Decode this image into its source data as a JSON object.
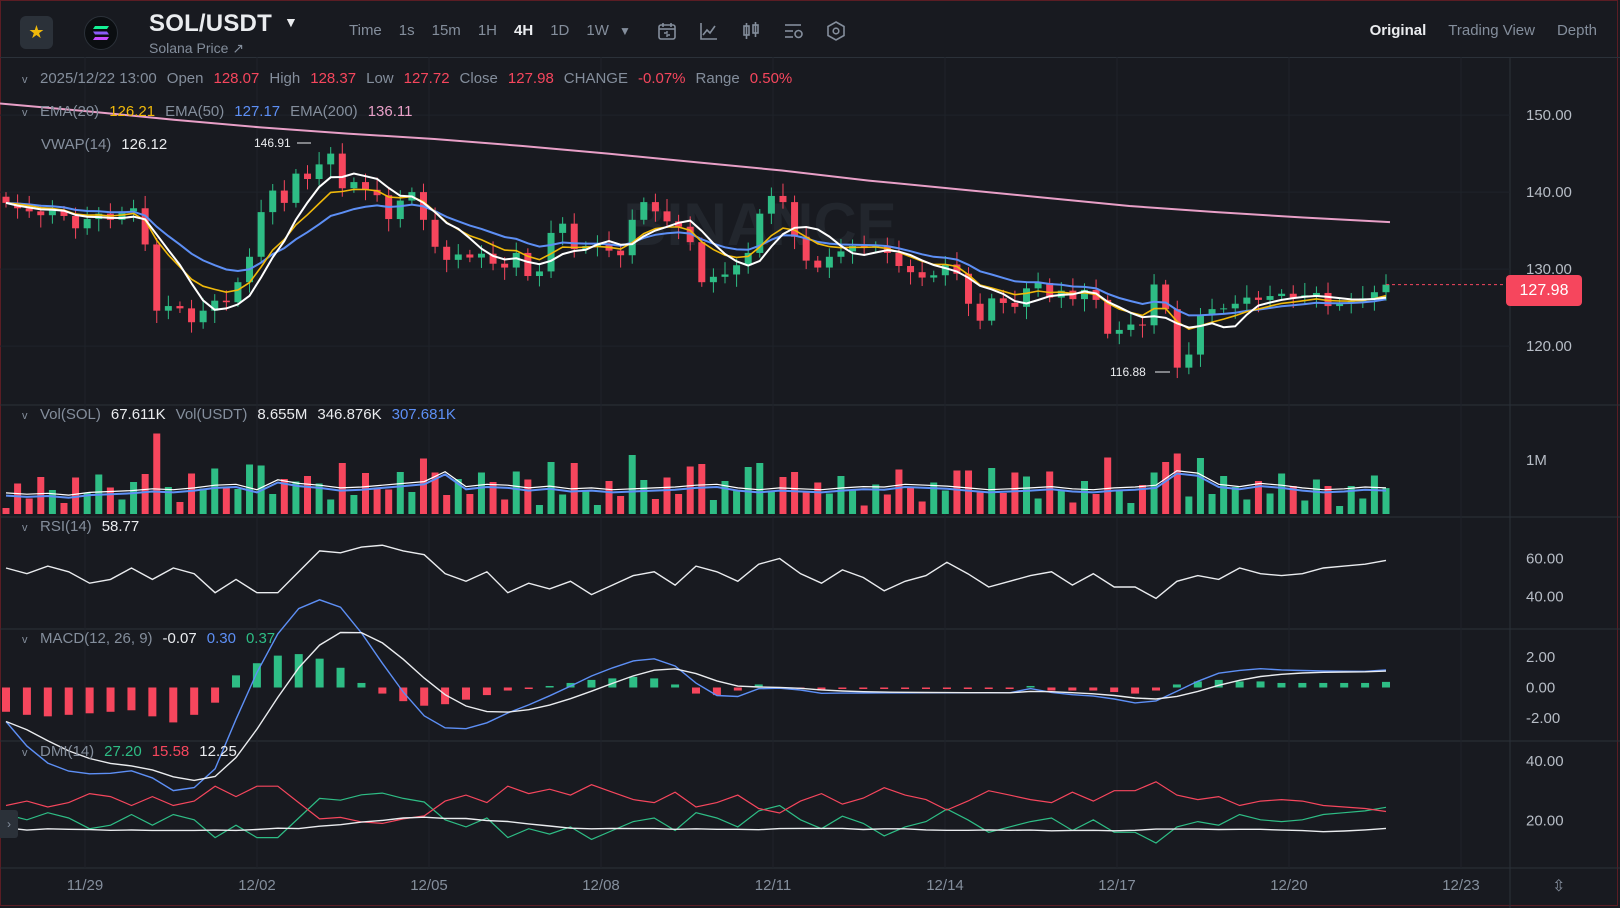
{
  "header": {
    "pair": "SOL/USDT",
    "subtitle": "Solana Price ↗",
    "intervals": [
      "Time",
      "1s",
      "15m",
      "1H",
      "4H",
      "1D",
      "1W"
    ],
    "active_interval": "4H",
    "views": [
      "Original",
      "Trading View",
      "Depth"
    ],
    "active_view": "Original"
  },
  "ohlc": {
    "datetime": "2025/12/22 13:00",
    "open_label": "Open",
    "open": "128.07",
    "high_label": "High",
    "high": "128.37",
    "low_label": "Low",
    "low": "127.72",
    "close_label": "Close",
    "close": "127.98",
    "change_label": "CHANGE",
    "change": "-0.07%",
    "range_label": "Range",
    "range": "0.50%"
  },
  "ema": {
    "ema20_label": "EMA(20)",
    "ema20": "126.21",
    "ema50_label": "EMA(50)",
    "ema50": "127.17",
    "ema200_label": "EMA(200)",
    "ema200": "136.11"
  },
  "vwap": {
    "label": "VWAP(14)",
    "value": "126.12"
  },
  "volume": {
    "label1": "Vol(SOL)",
    "value1": "67.611K",
    "label2": "Vol(USDT)",
    "value2": "8.655M",
    "value3": "346.876K",
    "value4": "307.681K"
  },
  "rsi": {
    "label": "RSI(14)",
    "value": "58.77"
  },
  "macd": {
    "label": "MACD(12, 26, 9)",
    "value1": "-0.07",
    "value2": "0.30",
    "value3": "0.37"
  },
  "dmi": {
    "label": "DMI(14)",
    "value1": "27.20",
    "value2": "15.58",
    "value3": "12.25"
  },
  "last_price": "127.98",
  "annotations": {
    "high_marker": "146.91",
    "low_marker": "116.88"
  },
  "colors": {
    "up": "#2EBD85",
    "down": "#F6465D",
    "ema20": "#F0B90B",
    "ema50": "#5D8FF5",
    "ema200": "#E9A0C8",
    "vwap": "#FFFFFF",
    "accent": "#F0B90B"
  },
  "icons": [
    "star-icon",
    "solana-logo",
    "chevron-down-icon",
    "calendar-icon",
    "line-chart-icon",
    "candle-settings-icon",
    "indicator-settings-icon",
    "hexagon-settings-icon",
    "expand-icon"
  ],
  "chart_data": {
    "type": "candlestick",
    "watermark": "BINANCE",
    "x_ticks": [
      "11/29",
      "12/02",
      "12/05",
      "12/08",
      "12/11",
      "12/14",
      "12/17",
      "12/20",
      "12/23"
    ],
    "price_axis": [
      "150.00",
      "140.00",
      "130.00",
      "120.00"
    ],
    "price_range": [
      113.0,
      153.0
    ],
    "volume_axis": [
      "1M"
    ],
    "rsi_axis": [
      "60.00",
      "40.00"
    ],
    "macd_axis": [
      "2.00",
      "0.00",
      "-2.00"
    ],
    "dmi_axis": [
      "40.00",
      "20.00"
    ],
    "candles_close": [
      138.6,
      137.9,
      137.5,
      137.0,
      137.6,
      136.9,
      135.3,
      136.5,
      137.2,
      136.4,
      137.5,
      137.9,
      133.2,
      124.6,
      125.2,
      124.9,
      123.1,
      124.6,
      125.9,
      125.7,
      128.3,
      131.6,
      137.4,
      140.2,
      138.6,
      142.4,
      141.7,
      143.6,
      145.0,
      140.5,
      141.3,
      140.3,
      139.6,
      136.5,
      138.9,
      140.0,
      136.4,
      132.9,
      131.2,
      131.9,
      131.5,
      132.0,
      130.7,
      130.2,
      132.1,
      129.1,
      129.7,
      134.7,
      135.9,
      132.6,
      133.0,
      133.3,
      132.4,
      131.8,
      136.4,
      138.7,
      137.5,
      136.2,
      135.5,
      133.5,
      128.3,
      129.0,
      129.3,
      130.5,
      132.1,
      137.2,
      139.5,
      138.7,
      134.2,
      131.1,
      130.2,
      131.6,
      132.3,
      133.0,
      132.8,
      133.0,
      132.1,
      130.4,
      129.6,
      128.9,
      129.2,
      130.6,
      129.4,
      125.5,
      123.3,
      126.2,
      125.6,
      125.1,
      127.5,
      128.2,
      126.3,
      127.2,
      126.1,
      127.3,
      126.0,
      121.6,
      122.1,
      122.8,
      122.7,
      128.0,
      124.8,
      117.2,
      118.9,
      124.1,
      124.8,
      124.9,
      125.5,
      126.3,
      126.0,
      126.5,
      126.8,
      126.3,
      126.6,
      126.9,
      125.2,
      125.6,
      125.8,
      126.2,
      127.0,
      127.98
    ],
    "ema200": [
      151.5,
      150.5,
      149.4,
      148.4,
      147.6,
      146.9,
      146.0,
      145.0,
      143.9,
      142.8,
      141.5,
      140.4,
      139.3,
      138.2,
      137.4,
      136.7,
      136.1
    ],
    "ema20_last": 126.21,
    "ema50_last": 127.17,
    "vwap_last": 126.12,
    "rsi_values": [
      55,
      52,
      56,
      53,
      47,
      49,
      55,
      49,
      55,
      52,
      42,
      49,
      42,
      42,
      53,
      64,
      63,
      66,
      67,
      64,
      62,
      52,
      48,
      53,
      42,
      47,
      44,
      48,
      41,
      46,
      51,
      53,
      46,
      56,
      53,
      48,
      57,
      60,
      52,
      47,
      54,
      50,
      43,
      48,
      51,
      58,
      52,
      45,
      48,
      51,
      53,
      46,
      52,
      45,
      45,
      39,
      48,
      51,
      49,
      55,
      52,
      51,
      52,
      55,
      56,
      57,
      59
    ],
    "macd_hist": [
      -1.6,
      -1.8,
      -1.9,
      -1.8,
      -1.7,
      -1.6,
      -1.5,
      -1.9,
      -2.3,
      -1.8,
      -1.0,
      0.8,
      1.6,
      2.1,
      2.2,
      1.9,
      1.3,
      0.3,
      -0.4,
      -0.9,
      -1.2,
      -1.1,
      -0.8,
      -0.5,
      -0.2,
      -0.1,
      0.1,
      0.3,
      0.5,
      0.6,
      0.7,
      0.6,
      0.2,
      -0.4,
      -0.5,
      -0.2,
      0.2,
      0.0,
      -0.1,
      -0.2,
      -0.1,
      -0.1,
      -0.1,
      -0.1,
      -0.1,
      -0.1,
      -0.1,
      -0.1,
      -0.1,
      0.1,
      -0.2,
      -0.2,
      -0.2,
      -0.3,
      -0.4,
      -0.2,
      0.2,
      0.4,
      0.5,
      0.4,
      0.4,
      0.3,
      0.3,
      0.3,
      0.3,
      0.3,
      0.37
    ],
    "volume_values": [
      41,
      38,
      40,
      36,
      42,
      44,
      46,
      50,
      48,
      52,
      58,
      60,
      48,
      70,
      62,
      58,
      52,
      54,
      58,
      62,
      66,
      88,
      55,
      60,
      58,
      52,
      56,
      50,
      52,
      48,
      50,
      52,
      54,
      58,
      60,
      52,
      48,
      52,
      50,
      48,
      52,
      55,
      54,
      60,
      58,
      56,
      52,
      48,
      50,
      52,
      55,
      50,
      48,
      52,
      54,
      58,
      90,
      85,
      60,
      55,
      62,
      58,
      52,
      48,
      50,
      54,
      52
    ]
  }
}
